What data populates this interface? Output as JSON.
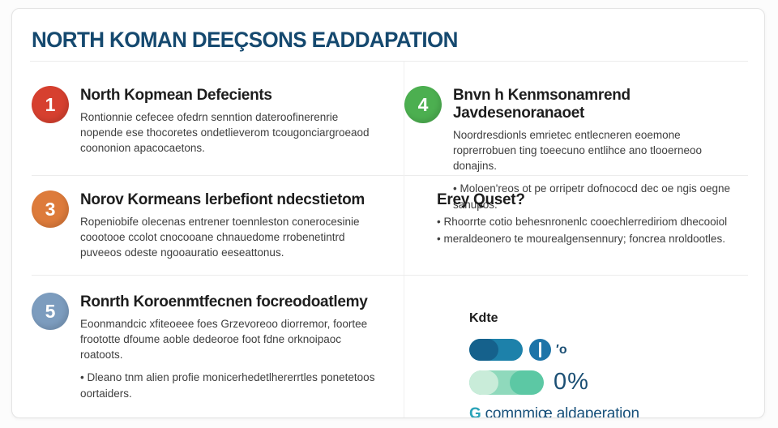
{
  "title": {
    "text": "NORTH KOMAN DEEÇSONS EADDAPATION",
    "color": "#15496f"
  },
  "sections": [
    {
      "number": "1",
      "badge_color": "#d6402f",
      "heading": "North Kopmean Defecients",
      "body": "Rontionnie cefecee ofedrn senntion dateroofinerenrie nopende ese thocoretes ondetlieverom tcougonciargroeaod coononion apacocaetons.",
      "bullets": []
    },
    {
      "number": "4",
      "badge_color": "#4caf50",
      "heading": "Bnvn h Kenmsonamrend Javdesenoranaoet",
      "body": "Noordresdionls emrietec entlecneren eoemone roprerrobuen ting toeecuno entlihce ano tlooerneoo donajins.",
      "bullets": [
        "Moloen'reos ot pe orripetr dofnococd dec oe ngis oegne sanupos."
      ]
    },
    {
      "number": "3",
      "badge_color": "#dd7b3b",
      "heading": "Norov Kormeans lerbefiont ndecstietom",
      "body": "Ropeniobife olecenas entrener toennleston conerocesinie coootooe ccolot cnocooane chnauedome rrobenetintrd puveeos odeste ngooauratio eeseattonus.",
      "bullets": []
    },
    {
      "number": "",
      "badge_color": "",
      "heading": "Erey Quset?",
      "body": "",
      "bullets": [
        "Rhoorrte cotio behesnronenlc cooechlerrediriom dhecooiol",
        "meraldeonero te mourealgensennury; foncrea nroldootles."
      ]
    },
    {
      "number": "5",
      "badge_color": "#7c9cbe",
      "heading": "Ronrth Koroenmtfecnen focreodoatlemy",
      "body": "Eoonmandcic xfiteoeee foes Grzevoreoo diorremor, foortee froototte dfoume aoble dedeoroe foot fdne orknoipaoc roatoots.",
      "bullets": [
        "Dleano tnm alien profie monicerhedetlhererrtles ponetetoos oortaiders."
      ]
    }
  ],
  "legend": {
    "heading": "Kdte",
    "blue_pill_color": "#1d81aa",
    "blue_pill_cap_color": "#15618c",
    "slit_circle_color": "#1d74a8",
    "row1_value": "′o",
    "teal_pill_color": "#8fd9bc",
    "teal_pill_left_color": "#c9ecd9",
    "teal_pill_right_color": "#5cc8a4",
    "row2_value": "0%",
    "value_color": "#1b4f74",
    "footer_icon": "G",
    "footer_icon_color": "#2aa3b8",
    "footer_text": "comnmiœ aldaperation",
    "footer_text_color": "#17507a"
  }
}
